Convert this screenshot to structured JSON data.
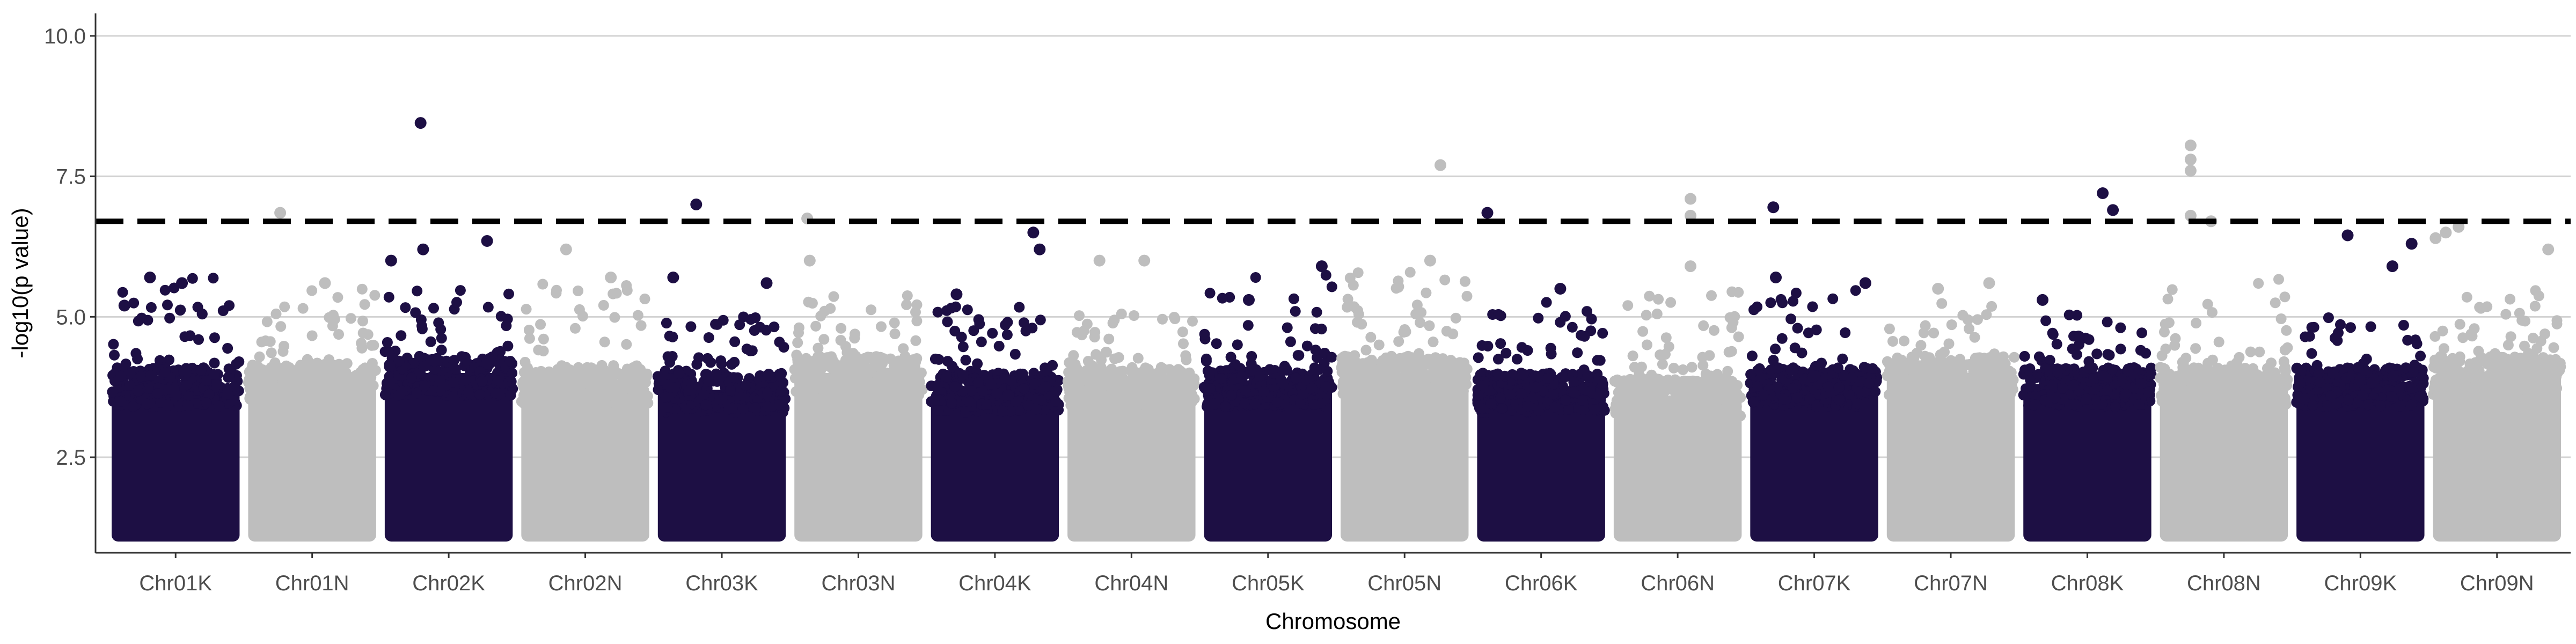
{
  "chart_data": {
    "type": "scatter",
    "subtype": "manhattan",
    "title": "",
    "xlabel": "Chromosome",
    "ylabel": "-log10(p value)",
    "ylim": [
      0.8,
      10.4
    ],
    "yticks": [
      2.5,
      5.0,
      7.5,
      10.0
    ],
    "ytick_labels": [
      "2.5",
      "5.0",
      "7.5",
      "10.0"
    ],
    "grid": "horizontal major",
    "legend": "none",
    "threshold": 6.7,
    "threshold_style": "dashed",
    "colors": {
      "odd": "#1d0f44",
      "even": "#bebebe",
      "threshold": "#000000",
      "grid": "#d3d3d3",
      "axis": "#333333"
    },
    "categories": [
      "Chr01K",
      "Chr01N",
      "Chr02K",
      "Chr02N",
      "Chr03K",
      "Chr03N",
      "Chr04K",
      "Chr04N",
      "Chr05K",
      "Chr05N",
      "Chr06K",
      "Chr06N",
      "Chr07K",
      "Chr07N",
      "Chr08K",
      "Chr08N",
      "Chr09K",
      "Chr09N"
    ],
    "series": [
      {
        "chrom": "Chr01K",
        "base_max": 3.8,
        "cluster_max": 5.7,
        "peaks": [
          [
            0.3,
            5.7
          ],
          [
            0.55,
            5.6
          ],
          [
            0.1,
            5.2
          ]
        ]
      },
      {
        "chrom": "Chr01N",
        "base_max": 3.9,
        "cluster_max": 5.5,
        "peaks": [
          [
            0.25,
            6.85
          ],
          [
            0.6,
            5.6
          ]
        ]
      },
      {
        "chrom": "Chr02K",
        "base_max": 4.0,
        "cluster_max": 5.6,
        "peaks": [
          [
            0.28,
            8.45
          ],
          [
            0.8,
            6.35
          ],
          [
            0.3,
            6.2
          ],
          [
            0.05,
            6.0
          ]
        ]
      },
      {
        "chrom": "Chr02N",
        "base_max": 3.8,
        "cluster_max": 5.6,
        "peaks": [
          [
            0.35,
            6.2
          ],
          [
            0.7,
            5.7
          ]
        ]
      },
      {
        "chrom": "Chr03K",
        "base_max": 3.7,
        "cluster_max": 5.0,
        "peaks": [
          [
            0.3,
            7.0
          ],
          [
            0.12,
            5.7
          ],
          [
            0.85,
            5.6
          ]
        ]
      },
      {
        "chrom": "Chr03N",
        "base_max": 4.0,
        "cluster_max": 5.5,
        "peaks": [
          [
            0.1,
            6.75
          ],
          [
            0.12,
            6.0
          ]
        ]
      },
      {
        "chrom": "Chr04K",
        "base_max": 3.7,
        "cluster_max": 5.3,
        "peaks": [
          [
            0.8,
            6.5
          ],
          [
            0.85,
            6.2
          ],
          [
            0.2,
            5.4
          ]
        ]
      },
      {
        "chrom": "Chr04N",
        "base_max": 3.8,
        "cluster_max": 5.1,
        "peaks": [
          [
            0.25,
            6.0
          ],
          [
            0.6,
            6.0
          ]
        ]
      },
      {
        "chrom": "Chr05K",
        "base_max": 3.8,
        "cluster_max": 5.8,
        "peaks": [
          [
            0.92,
            5.9
          ],
          [
            0.35,
            5.3
          ]
        ]
      },
      {
        "chrom": "Chr05N",
        "base_max": 4.0,
        "cluster_max": 5.8,
        "peaks": [
          [
            0.78,
            7.7
          ],
          [
            0.7,
            6.0
          ]
        ]
      },
      {
        "chrom": "Chr06K",
        "base_max": 3.7,
        "cluster_max": 5.3,
        "peaks": [
          [
            0.08,
            6.85
          ],
          [
            0.65,
            5.5
          ]
        ]
      },
      {
        "chrom": "Chr06N",
        "base_max": 3.6,
        "cluster_max": 5.5,
        "peaks": [
          [
            0.6,
            7.1
          ],
          [
            0.6,
            6.8
          ],
          [
            0.6,
            5.9
          ]
        ]
      },
      {
        "chrom": "Chr07K",
        "base_max": 3.8,
        "cluster_max": 5.5,
        "peaks": [
          [
            0.18,
            6.95
          ],
          [
            0.2,
            5.7
          ],
          [
            0.9,
            5.6
          ]
        ]
      },
      {
        "chrom": "Chr07N",
        "base_max": 4.0,
        "cluster_max": 5.3,
        "peaks": [
          [
            0.4,
            5.5
          ],
          [
            0.8,
            5.6
          ]
        ]
      },
      {
        "chrom": "Chr08K",
        "base_max": 3.8,
        "cluster_max": 5.2,
        "peaks": [
          [
            0.62,
            7.2
          ],
          [
            0.7,
            6.9
          ],
          [
            0.15,
            5.3
          ]
        ]
      },
      {
        "chrom": "Chr08N",
        "base_max": 3.8,
        "cluster_max": 5.8,
        "peaks": [
          [
            0.24,
            8.05
          ],
          [
            0.24,
            7.8
          ],
          [
            0.24,
            7.6
          ],
          [
            0.24,
            6.8
          ],
          [
            0.4,
            6.7
          ]
        ]
      },
      {
        "chrom": "Chr09K",
        "base_max": 3.8,
        "cluster_max": 5.0,
        "peaks": [
          [
            0.4,
            6.45
          ],
          [
            0.75,
            5.9
          ],
          [
            0.9,
            6.3
          ]
        ]
      },
      {
        "chrom": "Chr09N",
        "base_max": 4.0,
        "cluster_max": 5.5,
        "peaks": [
          [
            0.02,
            6.4
          ],
          [
            0.1,
            6.5
          ],
          [
            0.2,
            6.6
          ],
          [
            0.9,
            6.2
          ]
        ]
      }
    ]
  }
}
